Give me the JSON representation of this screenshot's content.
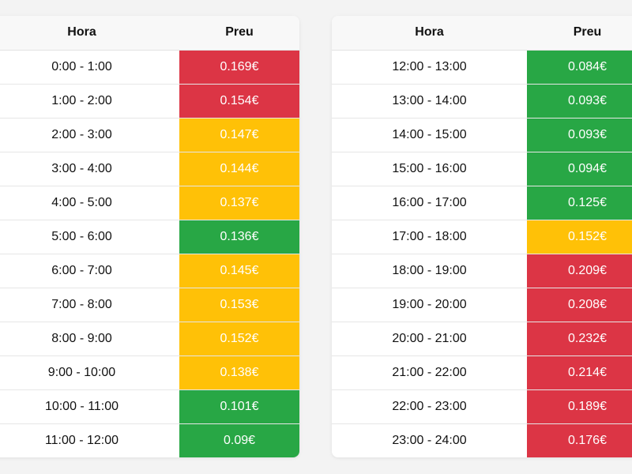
{
  "headers": {
    "hour": "Hora",
    "price": "Preu"
  },
  "colors": {
    "high": "#dc3545",
    "mid": "#ffc107",
    "low": "#28a745"
  },
  "tables": [
    {
      "rows": [
        {
          "hour": "0:00 - 1:00",
          "price": "0.169€",
          "level": "high"
        },
        {
          "hour": "1:00 - 2:00",
          "price": "0.154€",
          "level": "high"
        },
        {
          "hour": "2:00 - 3:00",
          "price": "0.147€",
          "level": "mid"
        },
        {
          "hour": "3:00 - 4:00",
          "price": "0.144€",
          "level": "mid"
        },
        {
          "hour": "4:00 - 5:00",
          "price": "0.137€",
          "level": "mid"
        },
        {
          "hour": "5:00 - 6:00",
          "price": "0.136€",
          "level": "low"
        },
        {
          "hour": "6:00 - 7:00",
          "price": "0.145€",
          "level": "mid"
        },
        {
          "hour": "7:00 - 8:00",
          "price": "0.153€",
          "level": "mid"
        },
        {
          "hour": "8:00 - 9:00",
          "price": "0.152€",
          "level": "mid"
        },
        {
          "hour": "9:00 - 10:00",
          "price": "0.138€",
          "level": "mid"
        },
        {
          "hour": "10:00 - 11:00",
          "price": "0.101€",
          "level": "low"
        },
        {
          "hour": "11:00 - 12:00",
          "price": "0.09€",
          "level": "low"
        }
      ]
    },
    {
      "rows": [
        {
          "hour": "12:00 - 13:00",
          "price": "0.084€",
          "level": "low"
        },
        {
          "hour": "13:00 - 14:00",
          "price": "0.093€",
          "level": "low"
        },
        {
          "hour": "14:00 - 15:00",
          "price": "0.093€",
          "level": "low"
        },
        {
          "hour": "15:00 - 16:00",
          "price": "0.094€",
          "level": "low"
        },
        {
          "hour": "16:00 - 17:00",
          "price": "0.125€",
          "level": "low"
        },
        {
          "hour": "17:00 - 18:00",
          "price": "0.152€",
          "level": "mid"
        },
        {
          "hour": "18:00 - 19:00",
          "price": "0.209€",
          "level": "high"
        },
        {
          "hour": "19:00 - 20:00",
          "price": "0.208€",
          "level": "high"
        },
        {
          "hour": "20:00 - 21:00",
          "price": "0.232€",
          "level": "high"
        },
        {
          "hour": "21:00 - 22:00",
          "price": "0.214€",
          "level": "high"
        },
        {
          "hour": "22:00 - 23:00",
          "price": "0.189€",
          "level": "high"
        },
        {
          "hour": "23:00 - 24:00",
          "price": "0.176€",
          "level": "high"
        }
      ]
    }
  ]
}
